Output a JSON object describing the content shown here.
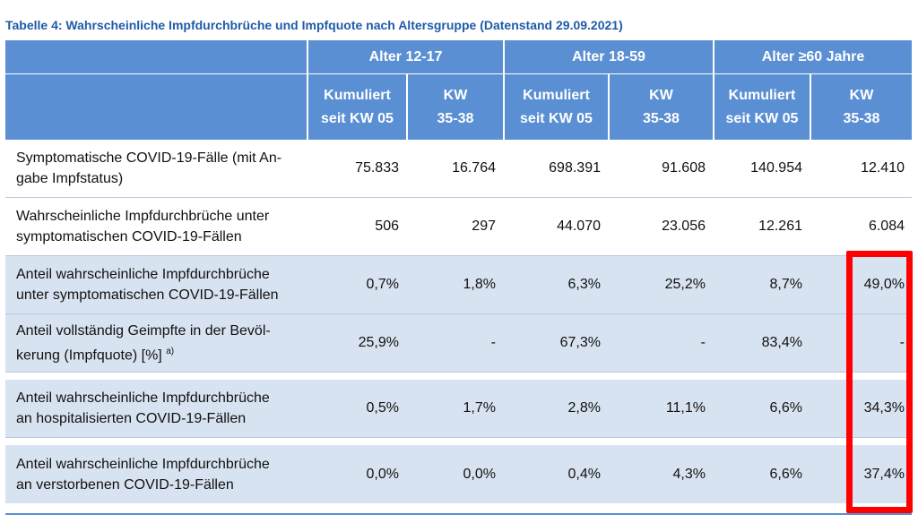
{
  "caption": "Tabelle 4: Wahrscheinliche Impfdurchbrüche und Impfquote nach Altersgruppe (Datenstand 29.09.2021)",
  "groups": [
    "Alter 12-17",
    "Alter 18-59",
    "Alter ≥60 Jahre"
  ],
  "subheaders": [
    {
      "line1": "Kumuliert",
      "line2": "seit KW 05"
    },
    {
      "line1": "KW",
      "line2": "35-38"
    },
    {
      "line1": "Kumuliert",
      "line2": "seit KW 05"
    },
    {
      "line1": "KW",
      "line2": "35-38"
    },
    {
      "line1": "Kumuliert",
      "line2": "seit KW 05"
    },
    {
      "line1": "KW",
      "line2": "35-38"
    }
  ],
  "rows": [
    {
      "label1": "Symptomatische COVID-19-Fälle (mit An-",
      "label2": "gabe Impfstatus)",
      "values": [
        "75.833",
        "16.764",
        "698.391",
        "91.608",
        "140.954",
        "12.410"
      ]
    },
    {
      "label1": "Wahrscheinliche Impfdurchbrüche unter",
      "label2": "symptomatischen COVID-19-Fällen",
      "values": [
        "506",
        "297",
        "44.070",
        "23.056",
        "12.261",
        "6.084"
      ]
    },
    {
      "label1": "Anteil wahrscheinliche Impfdurchbrüche",
      "label2": "unter symptomatischen COVID-19-Fällen",
      "values": [
        "0,7%",
        "1,8%",
        "6,3%",
        "25,2%",
        "8,7%",
        "49,0%"
      ]
    },
    {
      "label1": "Anteil vollständig Geimpfte in der Bevöl-",
      "label2": "kerung (Impfquote) [%]",
      "sup": "a)",
      "values": [
        "25,9%",
        "-",
        "67,3%",
        "-",
        "83,4%",
        "-"
      ]
    },
    {
      "label1": "Anteil wahrscheinliche Impfdurchbrüche",
      "label2": "an hospitalisierten COVID-19-Fällen",
      "values": [
        "0,5%",
        "1,7%",
        "2,8%",
        "11,1%",
        "6,6%",
        "34,3%"
      ]
    },
    {
      "label1": "Anteil wahrscheinliche Impfdurchbrüche",
      "label2": "an verstorbenen COVID-19-Fällen",
      "values": [
        "0,0%",
        "0,0%",
        "0,4%",
        "4,3%",
        "6,6%",
        "37,4%"
      ]
    }
  ],
  "highlight_color": "#ff0000",
  "header_color": "#5b8fd4",
  "row_shade_color": "#d8e3f1"
}
